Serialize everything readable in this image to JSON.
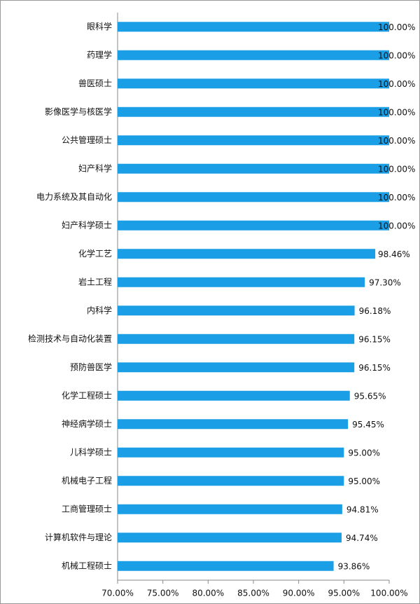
{
  "chart_data": {
    "type": "barh",
    "categories": [
      "眼科学",
      "药理学",
      "兽医硕士",
      "影像医学与核医学",
      "公共管理硕士",
      "妇产科学",
      "电力系统及其自动化",
      "妇产科学硕士",
      "化学工艺",
      "岩土工程",
      "内科学",
      "检测技术与自动化装置",
      "预防兽医学",
      "化学工程硕士",
      "神经病学硕士",
      "儿科学硕士",
      "机械电子工程",
      "工商管理硕士",
      "计算机软件与理论",
      "机械工程硕士"
    ],
    "values": [
      100,
      100,
      100,
      100,
      100,
      100,
      100,
      100,
      98.46,
      97.3,
      96.18,
      96.15,
      96.15,
      95.65,
      95.45,
      95,
      95,
      94.81,
      94.74,
      93.86
    ],
    "value_labels": [
      "100.00%",
      "100.00%",
      "100.00%",
      "100.00%",
      "100.00%",
      "100.00%",
      "100.00%",
      "100.00%",
      "98.46%",
      "97.30%",
      "96.18%",
      "96.15%",
      "96.15%",
      "95.65%",
      "95.45%",
      "95.00%",
      "95.00%",
      "94.81%",
      "94.74%",
      "93.86%"
    ],
    "color": "#1a9fe6",
    "xlim": [
      70,
      100
    ],
    "xticks": [
      {
        "value": 70,
        "label": "70.00%"
      },
      {
        "value": 75,
        "label": "75.00%"
      },
      {
        "value": 80,
        "label": "80.00%"
      },
      {
        "value": 85,
        "label": "85.00%"
      },
      {
        "value": 90,
        "label": "90.00%"
      },
      {
        "value": 95,
        "label": "95.00%"
      },
      {
        "value": 100,
        "label": "100.00%"
      }
    ],
    "grid": false
  }
}
